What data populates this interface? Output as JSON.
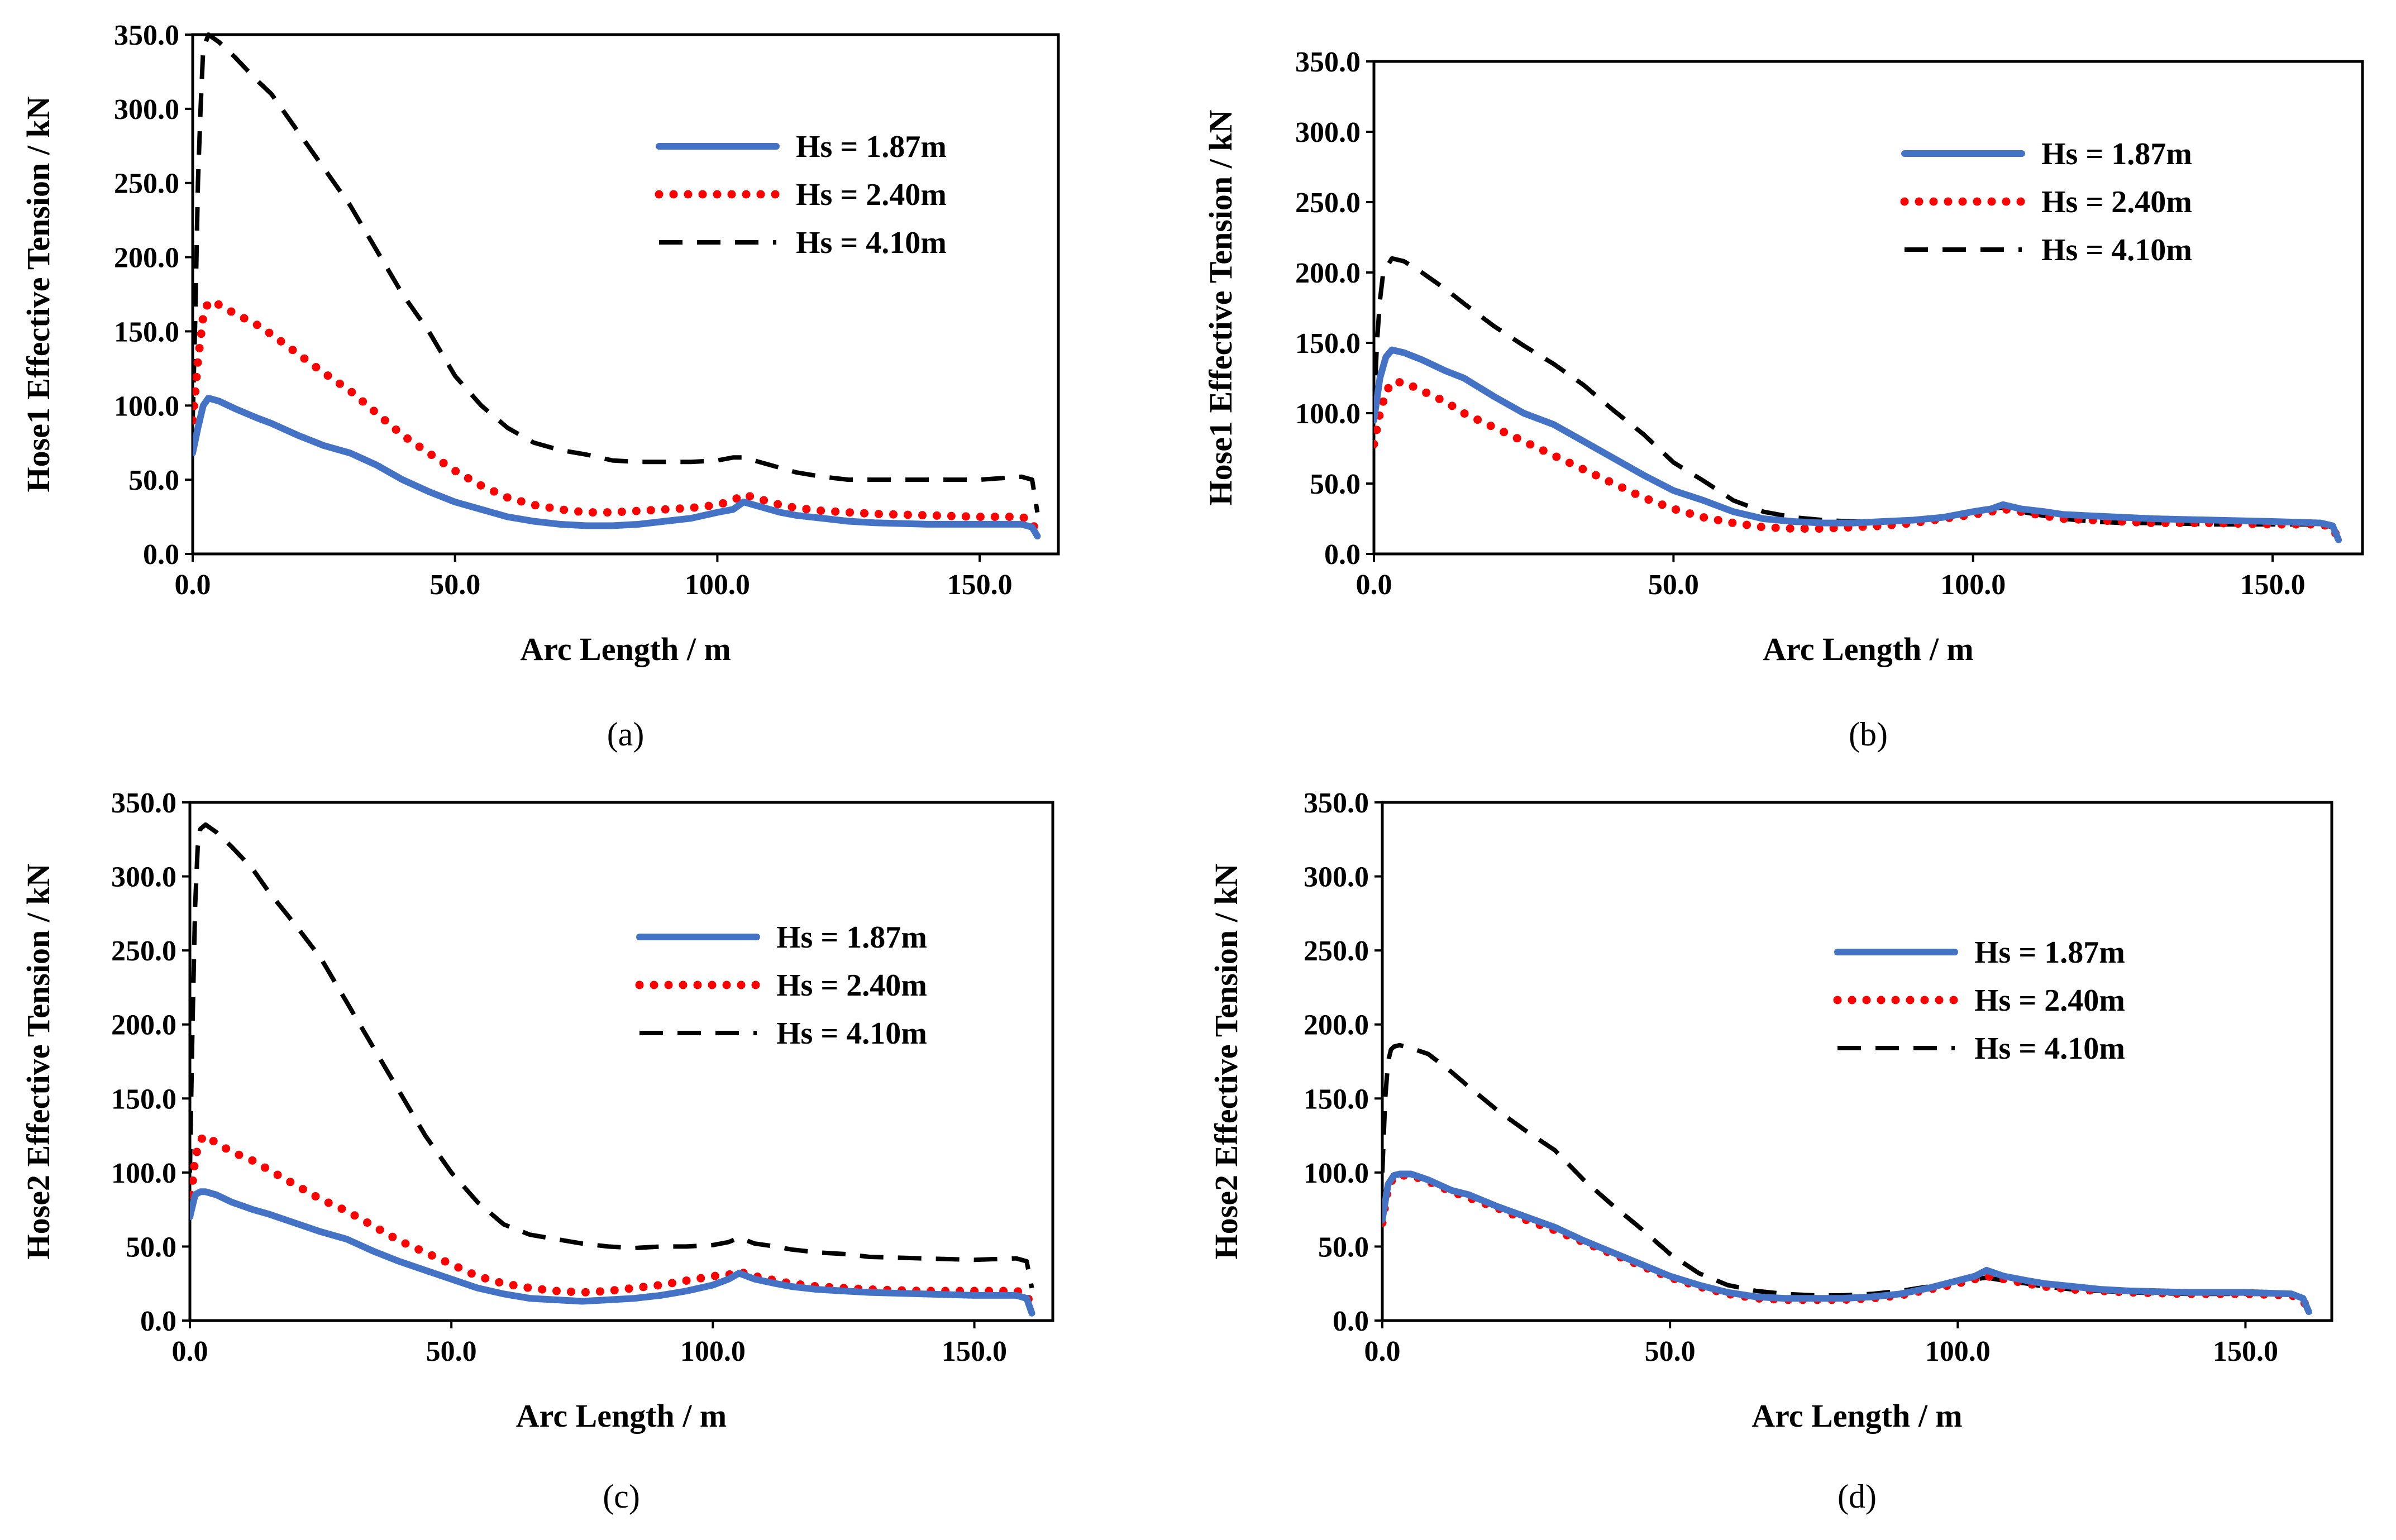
{
  "figure": {
    "colors": {
      "s1": "#4472C4",
      "s2": "#FF0000",
      "s3": "#000000"
    }
  },
  "chart_data": [
    {
      "id": "a",
      "type": "line",
      "caption_letter": "a",
      "ylabel": "Hose1 Effective Tension / kN",
      "xlabel": "Arc Length / m",
      "xlim": [
        0,
        165
      ],
      "ylim": [
        0,
        350
      ],
      "xticks": [
        "0.0",
        "50.0",
        "100.0",
        "150.0"
      ],
      "xtick_values": [
        0,
        50,
        100,
        150
      ],
      "yticks": [
        "0.0",
        "50.0",
        "100.0",
        "150.0",
        "200.0",
        "250.0",
        "300.0",
        "350.0"
      ],
      "ytick_values": [
        0,
        50,
        100,
        150,
        200,
        250,
        300,
        350
      ],
      "series": [
        {
          "name": "Hs = 1.87m",
          "style": "solid",
          "x": [
            0,
            1,
            2,
            3,
            5,
            8,
            12,
            15,
            20,
            25,
            30,
            35,
            40,
            45,
            50,
            55,
            60,
            65,
            70,
            75,
            80,
            85,
            90,
            95,
            100,
            103,
            105,
            108,
            112,
            115,
            120,
            125,
            130,
            140,
            150,
            158,
            160,
            161
          ],
          "y": [
            68,
            85,
            100,
            105,
            103,
            98,
            92,
            88,
            80,
            73,
            68,
            60,
            50,
            42,
            35,
            30,
            25,
            22,
            20,
            19,
            19,
            20,
            22,
            24,
            28,
            30,
            35,
            32,
            28,
            26,
            24,
            22,
            21,
            20,
            20,
            20,
            18,
            12
          ]
        },
        {
          "name": "Hs = 2.40m",
          "style": "dotted",
          "x": [
            0,
            1,
            2,
            3,
            5,
            8,
            12,
            15,
            20,
            25,
            30,
            35,
            40,
            45,
            50,
            55,
            60,
            65,
            70,
            75,
            80,
            85,
            90,
            95,
            100,
            103,
            105,
            108,
            112,
            115,
            120,
            125,
            130,
            140,
            150,
            158,
            160,
            161
          ],
          "y": [
            90,
            130,
            160,
            170,
            168,
            162,
            155,
            148,
            135,
            122,
            110,
            95,
            80,
            68,
            56,
            46,
            38,
            33,
            30,
            28,
            28,
            29,
            30,
            31,
            33,
            36,
            40,
            37,
            33,
            31,
            29,
            28,
            27,
            26,
            25,
            25,
            22,
            12
          ]
        },
        {
          "name": "Hs = 4.10m",
          "style": "dashed",
          "x": [
            0,
            0.5,
            1,
            1.5,
            2,
            3,
            5,
            8,
            12,
            15,
            20,
            25,
            30,
            35,
            40,
            45,
            50,
            55,
            60,
            65,
            70,
            75,
            80,
            85,
            90,
            95,
            100,
            103,
            105,
            108,
            112,
            115,
            120,
            125,
            130,
            140,
            150,
            158,
            160,
            161
          ],
          "y": [
            90,
            160,
            250,
            300,
            340,
            350,
            345,
            335,
            320,
            310,
            285,
            260,
            235,
            205,
            175,
            150,
            120,
            100,
            85,
            75,
            70,
            67,
            63,
            62,
            62,
            62,
            63,
            65,
            65,
            62,
            58,
            55,
            52,
            50,
            50,
            50,
            50,
            52,
            50,
            28
          ]
        }
      ],
      "legend_position": "top-right"
    },
    {
      "id": "b",
      "type": "line",
      "caption_letter": "b",
      "ylabel": "Hose1 Effective Tension / kN",
      "xlabel": "Arc Length / m",
      "xlim": [
        0,
        165
      ],
      "ylim": [
        0,
        350
      ],
      "xticks": [
        "0.0",
        "50.0",
        "100.0",
        "150.0"
      ],
      "xtick_values": [
        0,
        50,
        100,
        150
      ],
      "yticks": [
        "0.0",
        "50.0",
        "100.0",
        "150.0",
        "200.0",
        "250.0",
        "300.0",
        "350.0"
      ],
      "ytick_values": [
        0,
        50,
        100,
        150,
        200,
        250,
        300,
        350
      ],
      "series": [
        {
          "name": "Hs = 1.87m",
          "style": "solid",
          "x": [
            0,
            1,
            2,
            3,
            5,
            8,
            12,
            15,
            20,
            25,
            30,
            35,
            40,
            45,
            50,
            55,
            60,
            65,
            70,
            75,
            80,
            85,
            90,
            95,
            100,
            103,
            105,
            108,
            112,
            115,
            120,
            125,
            130,
            140,
            150,
            158,
            160,
            161
          ],
          "y": [
            95,
            125,
            140,
            145,
            143,
            138,
            130,
            125,
            112,
            100,
            92,
            80,
            68,
            56,
            45,
            38,
            30,
            25,
            23,
            22,
            22,
            23,
            24,
            26,
            30,
            32,
            35,
            32,
            30,
            28,
            27,
            26,
            25,
            24,
            23,
            22,
            20,
            10
          ]
        },
        {
          "name": "Hs = 2.40m",
          "style": "dotted",
          "x": [
            0,
            1,
            2,
            3,
            5,
            8,
            12,
            15,
            20,
            25,
            30,
            35,
            40,
            45,
            50,
            55,
            60,
            65,
            70,
            75,
            80,
            85,
            90,
            95,
            100,
            103,
            105,
            108,
            112,
            115,
            120,
            125,
            130,
            140,
            150,
            158,
            160,
            161
          ],
          "y": [
            78,
            100,
            115,
            122,
            122,
            116,
            108,
            100,
            90,
            80,
            70,
            60,
            50,
            40,
            32,
            26,
            22,
            19,
            18,
            18,
            19,
            20,
            22,
            25,
            28,
            30,
            32,
            30,
            27,
            25,
            24,
            23,
            22,
            22,
            21,
            21,
            19,
            10
          ]
        },
        {
          "name": "Hs = 4.10m",
          "style": "dashed",
          "x": [
            0,
            0.5,
            1,
            1.5,
            2,
            3,
            5,
            8,
            12,
            15,
            20,
            25,
            30,
            35,
            40,
            45,
            50,
            55,
            60,
            65,
            70,
            75,
            80,
            85,
            90,
            95,
            100,
            103,
            105,
            108,
            112,
            115,
            120,
            125,
            130,
            140,
            150,
            158,
            160,
            161
          ],
          "y": [
            100,
            150,
            180,
            198,
            203,
            210,
            208,
            200,
            188,
            178,
            162,
            148,
            135,
            120,
            102,
            85,
            65,
            52,
            38,
            30,
            26,
            24,
            23,
            23,
            24,
            26,
            30,
            32,
            33,
            30,
            27,
            25,
            23,
            22,
            22,
            21,
            21,
            21,
            19,
            10
          ]
        }
      ],
      "legend_position": "top-right"
    },
    {
      "id": "c",
      "type": "line",
      "caption_letter": "c",
      "ylabel": "Hose2 Effective Tension / kN",
      "xlabel": "Arc Length / m",
      "xlim": [
        0,
        165
      ],
      "ylim": [
        0,
        350
      ],
      "xticks": [
        "0.0",
        "50.0",
        "100.0",
        "150.0"
      ],
      "xtick_values": [
        0,
        50,
        100,
        150
      ],
      "yticks": [
        "0.0",
        "50.0",
        "100.0",
        "150.0",
        "200.0",
        "250.0",
        "300.0",
        "350.0"
      ],
      "ytick_values": [
        0,
        50,
        100,
        150,
        200,
        250,
        300,
        350
      ],
      "series": [
        {
          "name": "Hs = 1.87m",
          "style": "solid",
          "x": [
            0,
            1,
            2,
            3,
            5,
            8,
            12,
            15,
            20,
            25,
            30,
            35,
            40,
            45,
            50,
            55,
            60,
            65,
            70,
            75,
            80,
            85,
            90,
            95,
            100,
            103,
            105,
            108,
            112,
            115,
            120,
            125,
            130,
            140,
            150,
            158,
            160,
            161
          ],
          "y": [
            70,
            85,
            87,
            87,
            85,
            80,
            75,
            72,
            66,
            60,
            55,
            47,
            40,
            34,
            28,
            22,
            18,
            15,
            14,
            13,
            14,
            15,
            17,
            20,
            24,
            28,
            32,
            28,
            25,
            23,
            21,
            20,
            19,
            18,
            17,
            17,
            15,
            5
          ]
        },
        {
          "name": "Hs = 2.40m",
          "style": "dotted",
          "x": [
            0,
            1,
            2,
            3,
            5,
            8,
            12,
            15,
            20,
            25,
            30,
            35,
            40,
            45,
            50,
            55,
            60,
            65,
            70,
            75,
            80,
            85,
            90,
            95,
            100,
            103,
            105,
            108,
            112,
            115,
            120,
            125,
            130,
            140,
            150,
            158,
            160,
            161
          ],
          "y": [
            75,
            110,
            122,
            125,
            120,
            114,
            108,
            102,
            92,
            82,
            74,
            64,
            54,
            46,
            38,
            30,
            25,
            22,
            20,
            19,
            20,
            22,
            24,
            27,
            30,
            31,
            33,
            30,
            27,
            25,
            23,
            22,
            21,
            20,
            20,
            20,
            18,
            8
          ]
        },
        {
          "name": "Hs = 4.10m",
          "style": "dashed",
          "x": [
            0,
            0.5,
            1,
            1.5,
            2,
            3,
            5,
            8,
            12,
            15,
            20,
            25,
            30,
            35,
            40,
            45,
            50,
            55,
            60,
            65,
            70,
            75,
            80,
            85,
            90,
            95,
            100,
            103,
            105,
            108,
            112,
            115,
            120,
            125,
            130,
            140,
            150,
            158,
            160,
            161
          ],
          "y": [
            100,
            200,
            280,
            320,
            332,
            335,
            330,
            320,
            305,
            290,
            268,
            245,
            215,
            185,
            155,
            125,
            100,
            80,
            65,
            58,
            55,
            52,
            50,
            49,
            50,
            50,
            51,
            53,
            56,
            52,
            50,
            48,
            46,
            45,
            43,
            42,
            41,
            42,
            40,
            22
          ]
        }
      ],
      "legend_position": "top-right"
    },
    {
      "id": "d",
      "type": "line",
      "caption_letter": "d",
      "ylabel": "Hose2 Effective Tension / kN",
      "xlabel": "Arc Length / m",
      "xlim": [
        0,
        165
      ],
      "ylim": [
        0,
        350
      ],
      "xticks": [
        "0.0",
        "50.0",
        "100.0",
        "150.0"
      ],
      "xtick_values": [
        0,
        50,
        100,
        150
      ],
      "yticks": [
        "0.0",
        "50.0",
        "100.0",
        "150.0",
        "200.0",
        "250.0",
        "300.0",
        "350.0"
      ],
      "ytick_values": [
        0,
        50,
        100,
        150,
        200,
        250,
        300,
        350
      ],
      "series": [
        {
          "name": "Hs = 1.87m",
          "style": "solid",
          "x": [
            0,
            1,
            2,
            3,
            5,
            8,
            12,
            15,
            20,
            25,
            30,
            35,
            40,
            45,
            50,
            55,
            60,
            65,
            70,
            75,
            80,
            85,
            90,
            95,
            100,
            103,
            105,
            108,
            112,
            115,
            120,
            125,
            130,
            140,
            150,
            158,
            160,
            161
          ],
          "y": [
            68,
            92,
            98,
            99,
            99,
            95,
            88,
            85,
            77,
            70,
            63,
            54,
            46,
            38,
            30,
            24,
            19,
            16,
            15,
            15,
            15,
            16,
            18,
            22,
            27,
            30,
            34,
            30,
            27,
            25,
            23,
            21,
            20,
            19,
            19,
            18,
            15,
            6
          ]
        },
        {
          "name": "Hs = 2.40m",
          "style": "dotted",
          "x": [
            0,
            1,
            2,
            3,
            5,
            8,
            12,
            15,
            20,
            25,
            30,
            35,
            40,
            45,
            50,
            55,
            60,
            65,
            70,
            75,
            80,
            85,
            90,
            95,
            100,
            103,
            105,
            108,
            112,
            115,
            120,
            125,
            130,
            140,
            150,
            158,
            160,
            161
          ],
          "y": [
            66,
            90,
            97,
            98,
            98,
            94,
            87,
            83,
            76,
            68,
            61,
            53,
            45,
            37,
            29,
            23,
            18,
            15,
            14,
            14,
            14,
            15,
            17,
            21,
            25,
            28,
            30,
            28,
            25,
            23,
            21,
            20,
            19,
            18,
            18,
            17,
            14,
            6
          ]
        },
        {
          "name": "Hs = 4.10m",
          "style": "dashed",
          "x": [
            0,
            0.5,
            1,
            1.5,
            2,
            3,
            5,
            8,
            12,
            15,
            20,
            25,
            30,
            35,
            40,
            45,
            50,
            55,
            60,
            65,
            70,
            75,
            80,
            85,
            90,
            95,
            100,
            103,
            105,
            108,
            112,
            115,
            120,
            125,
            130,
            140,
            150,
            158,
            160,
            161
          ],
          "y": [
            100,
            150,
            175,
            183,
            185,
            186,
            184,
            180,
            168,
            158,
            142,
            128,
            115,
            95,
            78,
            62,
            45,
            32,
            24,
            20,
            18,
            17,
            17,
            18,
            20,
            23,
            27,
            28,
            29,
            27,
            25,
            23,
            21,
            20,
            19,
            18,
            18,
            18,
            15,
            8
          ]
        }
      ],
      "legend_position": "top-right"
    }
  ]
}
